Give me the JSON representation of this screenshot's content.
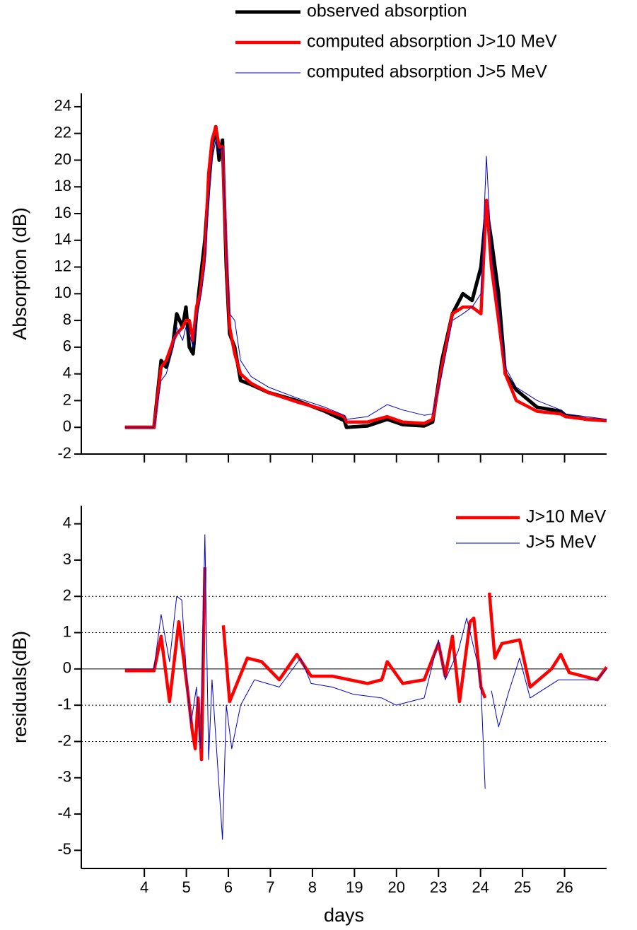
{
  "chart_data": [
    {
      "type": "line",
      "ylabel": "Absorption (dB)",
      "legend": "above",
      "xlim": [
        -1.5,
        11
      ],
      "xticks": [
        0,
        1,
        2,
        3,
        4,
        5,
        6,
        7,
        8,
        9,
        10
      ],
      "ylim": [
        -2,
        25
      ],
      "yticks": [
        -2,
        0,
        2,
        4,
        6,
        8,
        10,
        12,
        14,
        16,
        18,
        20,
        22,
        24
      ],
      "x": [
        -0.46,
        0.23,
        0.4,
        0.52,
        0.69,
        0.77,
        0.91,
        0.99,
        1.07,
        1.16,
        1.24,
        1.33,
        1.44,
        1.53,
        1.61,
        1.7,
        1.78,
        1.86,
        1.95,
        2.03,
        2.15,
        2.29,
        2.54,
        2.96,
        3.63,
        4.3,
        4.76,
        4.81,
        5.31,
        5.78,
        6.15,
        6.66,
        6.86,
        7.08,
        7.33,
        7.58,
        7.8,
        8.01,
        8.14,
        8.26,
        8.43,
        8.59,
        8.85,
        9.35,
        9.91,
        10.02,
        10.53,
        11.0
      ],
      "series": [
        {
          "name": "observed absorption",
          "color": "#000000",
          "line_width": 5,
          "values": [
            0,
            0,
            5,
            4.5,
            6.5,
            8.5,
            7.5,
            9,
            6,
            5.5,
            8.5,
            11,
            14,
            18,
            21,
            22.5,
            20,
            21.5,
            12,
            7,
            6,
            3.5,
            3.2,
            2.6,
            2,
            1.2,
            0.5,
            0,
            0.1,
            0.6,
            0.2,
            0.1,
            0.4,
            5,
            8.5,
            10,
            9.5,
            12,
            16.5,
            14,
            10,
            4,
            2.8,
            1.5,
            1.2,
            0.9,
            0.6,
            0.5
          ]
        },
        {
          "name": "computed absorption J>10 MeV",
          "color": "#ff0000",
          "line_width": 4.5,
          "values": [
            0,
            0,
            4.5,
            5,
            6.5,
            7,
            7.5,
            8,
            8,
            6.5,
            9,
            10,
            13,
            19,
            21.5,
            22.5,
            21,
            21,
            13,
            7.5,
            5.5,
            4,
            3.3,
            2.6,
            1.9,
            1.3,
            0.8,
            0.4,
            0.4,
            0.8,
            0.4,
            0.3,
            0.6,
            4.5,
            8.5,
            9,
            9,
            8.5,
            17,
            12,
            8,
            4,
            2,
            1.2,
            1,
            0.8,
            0.6,
            0.5
          ]
        },
        {
          "name": "computed absorption J>5 MeV",
          "color": "#0000cc",
          "line_width": 1,
          "values": [
            0,
            0,
            3.5,
            4,
            6,
            7.5,
            6.5,
            7.5,
            7,
            6,
            8,
            9.5,
            12,
            17,
            20,
            21.5,
            20.5,
            21,
            14,
            8.5,
            8,
            5,
            3.8,
            3,
            2.2,
            1.5,
            0.9,
            0.6,
            0.8,
            1.7,
            1.3,
            0.9,
            1,
            4,
            8,
            8.5,
            9,
            10,
            20.3,
            13,
            9,
            4.5,
            3,
            2,
            1.3,
            1,
            0.8,
            0.6
          ]
        }
      ]
    },
    {
      "type": "line",
      "ylabel": "residuals(dB)",
      "xlabel": "days",
      "legend": "upper right",
      "xlim": [
        -1.5,
        11
      ],
      "xticks": [
        {
          "value": 0,
          "label": "4"
        },
        {
          "value": 1,
          "label": "5"
        },
        {
          "value": 2,
          "label": "6"
        },
        {
          "value": 3,
          "label": "7"
        },
        {
          "value": 4,
          "label": "8"
        },
        {
          "value": 5,
          "label": "19"
        },
        {
          "value": 6,
          "label": "20"
        },
        {
          "value": 7,
          "label": "23"
        },
        {
          "value": 8,
          "label": "24"
        },
        {
          "value": 9,
          "label": "25"
        },
        {
          "value": 10,
          "label": "26"
        }
      ],
      "ylim": [
        -5.5,
        4.5
      ],
      "yticks": [
        -5,
        -4,
        -3,
        -2,
        -1,
        0,
        1,
        2,
        3,
        4
      ],
      "dotted_lines": [
        2,
        1,
        -1,
        -2
      ],
      "zero_line": 0,
      "series": [
        {
          "name": "J>10 MeV",
          "color": "#ff0000",
          "line_width": 4.5,
          "x": [
            -0.46,
            0.23,
            0.4,
            0.6,
            0.82,
            1.02,
            1.14,
            1.21,
            1.28,
            1.36,
            1.44,
            1.66,
            1.88,
            2.03,
            2.45,
            2.79,
            3.21,
            3.63,
            3.97,
            4.47,
            5.31,
            5.65,
            5.78,
            6.15,
            6.66,
            7.0,
            7.16,
            7.33,
            7.5,
            7.75,
            7.84,
            8.01,
            8.11,
            8.16,
            8.21,
            8.34,
            8.51,
            8.93,
            9.18,
            9.69,
            9.91,
            10.11,
            10.78,
            11.0
          ],
          "values": [
            -0.05,
            -0.05,
            0.9,
            -0.9,
            1.3,
            -0.5,
            -1.7,
            -2.2,
            -0.8,
            -2.5,
            2.8,
            null,
            1.2,
            -0.9,
            0.3,
            0.2,
            -0.3,
            0.4,
            -0.2,
            -0.2,
            -0.4,
            -0.3,
            0.2,
            -0.4,
            -0.3,
            0.7,
            -0.2,
            0.9,
            -0.9,
            1.3,
            1.4,
            -0.5,
            -0.8,
            null,
            2.1,
            0.3,
            0.7,
            0.8,
            -0.5,
            0,
            0.4,
            -0.1,
            -0.3,
            0.05
          ]
        },
        {
          "name": "J>5 MeV",
          "color": "#0000cc",
          "line_width": 1,
          "x": [
            -0.46,
            0.23,
            0.4,
            0.6,
            0.77,
            0.89,
            1.02,
            1.11,
            1.24,
            1.34,
            1.44,
            1.53,
            1.61,
            1.86,
            1.95,
            2.08,
            2.29,
            2.62,
            3.21,
            3.72,
            3.97,
            4.47,
            4.98,
            5.65,
            5.99,
            6.66,
            7.0,
            7.16,
            7.47,
            7.67,
            7.92,
            8.01,
            8.11,
            8.16,
            8.26,
            8.43,
            8.68,
            8.93,
            9.18,
            9.86,
            10.78,
            11.0
          ],
          "values": [
            0,
            0,
            1.5,
            0.2,
            2,
            1.9,
            -0.5,
            -1.5,
            -0.5,
            -2.2,
            3.7,
            -2.5,
            -0.3,
            -4.7,
            -1,
            -2.2,
            -1,
            -0.3,
            -0.5,
            0.3,
            -0.4,
            -0.5,
            -0.7,
            -0.8,
            -1,
            -0.8,
            0.8,
            -0.3,
            0.5,
            1.4,
            0.2,
            -0.5,
            -3.3,
            null,
            -0.6,
            -1.6,
            -0.6,
            0.3,
            -0.8,
            -0.3,
            -0.3,
            0
          ]
        }
      ]
    }
  ]
}
